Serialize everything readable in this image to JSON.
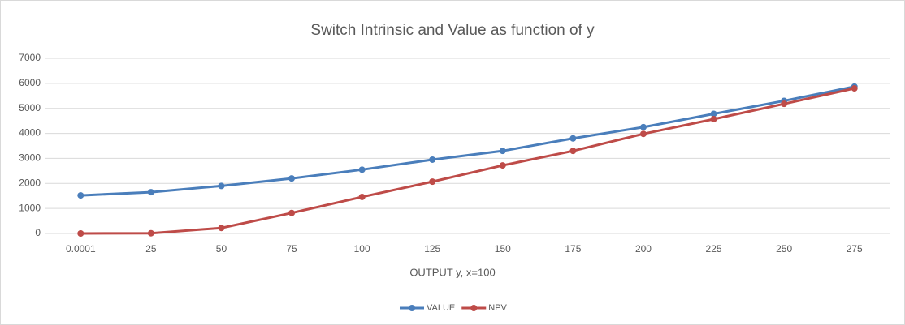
{
  "chart_data": {
    "type": "line",
    "title": "Switch Intrinsic and Value as function of y",
    "x_label": "OUTPUT  y, x=100",
    "categories": [
      "0.0001",
      "25",
      "50",
      "75",
      "100",
      "125",
      "150",
      "175",
      "200",
      "225",
      "250",
      "275"
    ],
    "series": [
      {
        "name": "VALUE",
        "color": "#4a7ebb",
        "values": [
          1520,
          1650,
          1900,
          2200,
          2550,
          2950,
          3300,
          3800,
          4250,
          4780,
          5300,
          5870
        ]
      },
      {
        "name": "NPV",
        "color": "#be4b48",
        "values": [
          0,
          10,
          220,
          820,
          1460,
          2070,
          2720,
          3300,
          3980,
          4570,
          5180,
          5800
        ]
      }
    ],
    "ylim": [
      0,
      7000
    ],
    "yticks": [
      0,
      1000,
      2000,
      3000,
      4000,
      5000,
      6000,
      7000
    ],
    "grid": true,
    "legend": "bottom"
  }
}
